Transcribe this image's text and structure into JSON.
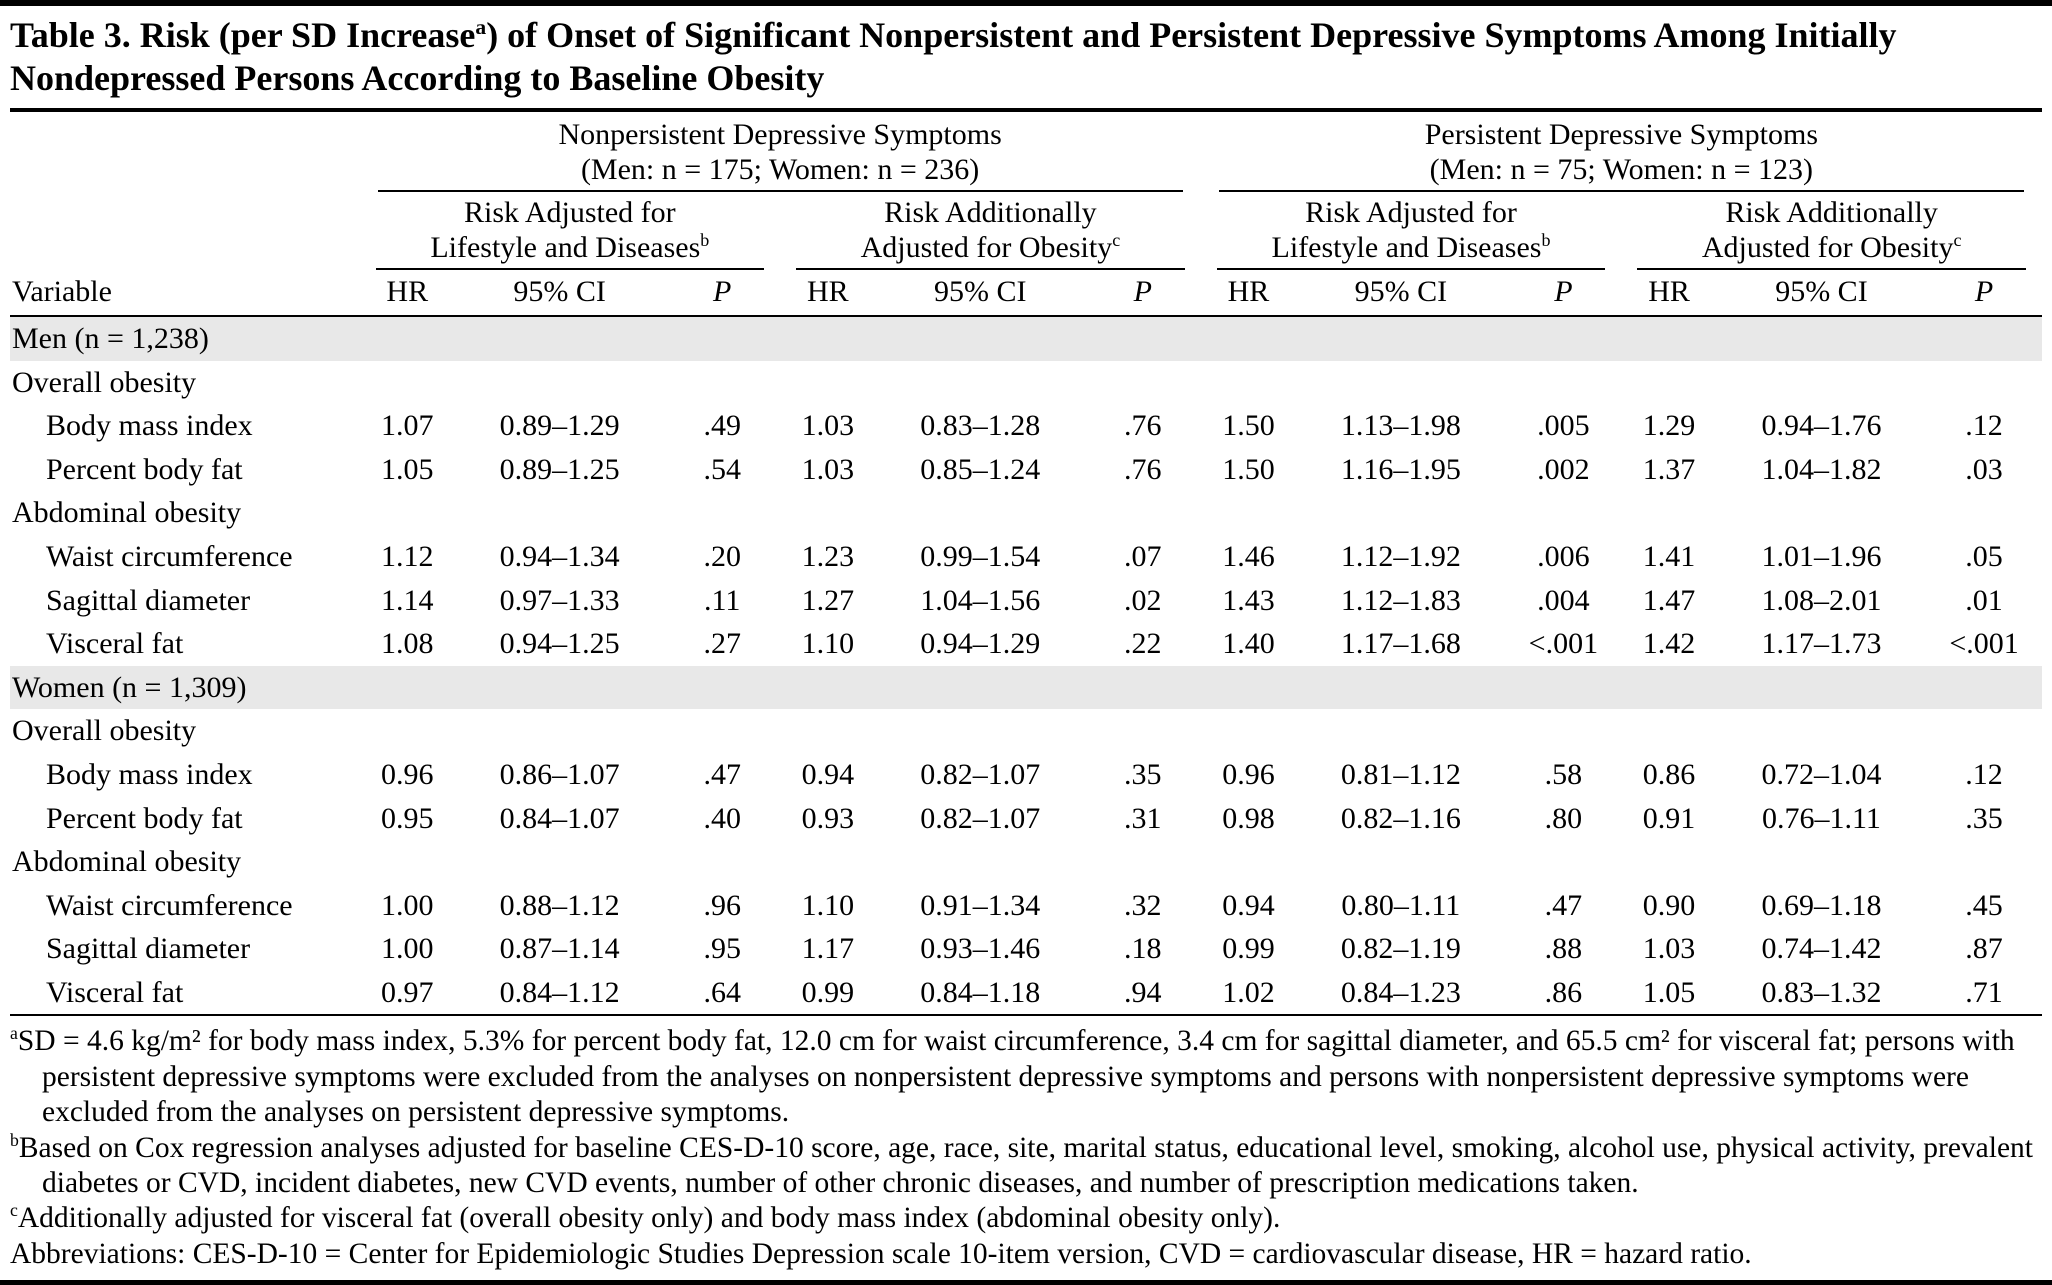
{
  "title": "Table 3. Risk (per SD Increase^{a}) of Onset of Significant Nonpersistent and Persistent Depressive Symptoms Among Initially Nondepressed Persons According to Baseline Obesity",
  "table": {
    "groups": [
      {
        "title": "Nonpersistent Depressive Symptoms",
        "subtitle": "(Men: n = 175; Women: n = 236)"
      },
      {
        "title": "Persistent Depressive Symptoms",
        "subtitle": "(Men: n = 75; Women: n = 123)"
      }
    ],
    "subgroups": [
      {
        "line1": "Risk Adjusted for",
        "line2": "Lifestyle and Diseases^{b}"
      },
      {
        "line1": "Risk Additionally",
        "line2": "Adjusted for Obesity^{c}"
      }
    ],
    "variable_header": "Variable",
    "col_headers": {
      "hr": "HR",
      "ci": "95% CI",
      "p": "P"
    },
    "rows": [
      {
        "type": "section",
        "label": "Men (n = 1,238)"
      },
      {
        "type": "subheader",
        "label": "Overall obesity"
      },
      {
        "type": "data",
        "label": "Body mass index",
        "values": [
          "1.07",
          "0.89–1.29",
          ".49",
          "1.03",
          "0.83–1.28",
          ".76",
          "1.50",
          "1.13–1.98",
          ".005",
          "1.29",
          "0.94–1.76",
          ".12"
        ]
      },
      {
        "type": "data",
        "label": "Percent body fat",
        "values": [
          "1.05",
          "0.89–1.25",
          ".54",
          "1.03",
          "0.85–1.24",
          ".76",
          "1.50",
          "1.16–1.95",
          ".002",
          "1.37",
          "1.04–1.82",
          ".03"
        ]
      },
      {
        "type": "subheader",
        "label": "Abdominal obesity"
      },
      {
        "type": "data",
        "label": "Waist circumference",
        "values": [
          "1.12",
          "0.94–1.34",
          ".20",
          "1.23",
          "0.99–1.54",
          ".07",
          "1.46",
          "1.12–1.92",
          ".006",
          "1.41",
          "1.01–1.96",
          ".05"
        ]
      },
      {
        "type": "data",
        "label": "Sagittal diameter",
        "values": [
          "1.14",
          "0.97–1.33",
          ".11",
          "1.27",
          "1.04–1.56",
          ".02",
          "1.43",
          "1.12–1.83",
          ".004",
          "1.47",
          "1.08–2.01",
          ".01"
        ]
      },
      {
        "type": "data",
        "label": "Visceral fat",
        "values": [
          "1.08",
          "0.94–1.25",
          ".27",
          "1.10",
          "0.94–1.29",
          ".22",
          "1.40",
          "1.17–1.68",
          "<.001",
          "1.42",
          "1.17–1.73",
          "<.001"
        ]
      },
      {
        "type": "section",
        "label": "Women (n = 1,309)"
      },
      {
        "type": "subheader",
        "label": "Overall obesity"
      },
      {
        "type": "data",
        "label": "Body mass index",
        "values": [
          "0.96",
          "0.86–1.07",
          ".47",
          "0.94",
          "0.82–1.07",
          ".35",
          "0.96",
          "0.81–1.12",
          ".58",
          "0.86",
          "0.72–1.04",
          ".12"
        ]
      },
      {
        "type": "data",
        "label": "Percent body fat",
        "values": [
          "0.95",
          "0.84–1.07",
          ".40",
          "0.93",
          "0.82–1.07",
          ".31",
          "0.98",
          "0.82–1.16",
          ".80",
          "0.91",
          "0.76–1.11",
          ".35"
        ]
      },
      {
        "type": "subheader",
        "label": "Abdominal obesity"
      },
      {
        "type": "data",
        "label": "Waist circumference",
        "values": [
          "1.00",
          "0.88–1.12",
          ".96",
          "1.10",
          "0.91–1.34",
          ".32",
          "0.94",
          "0.80–1.11",
          ".47",
          "0.90",
          "0.69–1.18",
          ".45"
        ]
      },
      {
        "type": "data",
        "label": "Sagittal diameter",
        "values": [
          "1.00",
          "0.87–1.14",
          ".95",
          "1.17",
          "0.93–1.46",
          ".18",
          "0.99",
          "0.82–1.19",
          ".88",
          "1.03",
          "0.74–1.42",
          ".87"
        ]
      },
      {
        "type": "data",
        "label": "Visceral fat",
        "values": [
          "0.97",
          "0.84–1.12",
          ".64",
          "0.99",
          "0.84–1.18",
          ".94",
          "1.02",
          "0.84–1.23",
          ".86",
          "1.05",
          "0.83–1.32",
          ".71"
        ]
      }
    ]
  },
  "footnotes": [
    {
      "marker": "a",
      "text": "SD = 4.6 kg/m² for body mass index, 5.3% for percent body fat, 12.0 cm for waist circumference, 3.4 cm for sagittal diameter, and 65.5 cm² for visceral fat; persons with persistent depressive symptoms were excluded from the analyses on nonpersistent depressive symptoms and persons with nonpersistent depressive symptoms were excluded from the analyses on persistent depressive symptoms."
    },
    {
      "marker": "b",
      "text": "Based on Cox regression analyses adjusted for baseline CES-D-10 score, age, race, site, marital status, educational level, smoking, alcohol use, physical activity, prevalent diabetes or CVD, incident diabetes, new CVD events, number of other chronic diseases, and number of prescription medications taken."
    },
    {
      "marker": "c",
      "text": "Additionally adjusted for visceral fat (overall obesity only) and body mass index (abdominal obesity only)."
    },
    {
      "marker": "",
      "text": "Abbreviations: CES-D-10 = Center for Epidemiologic Studies Depression scale 10-item version, CVD = cardiovascular disease, HR = hazard ratio."
    }
  ]
}
